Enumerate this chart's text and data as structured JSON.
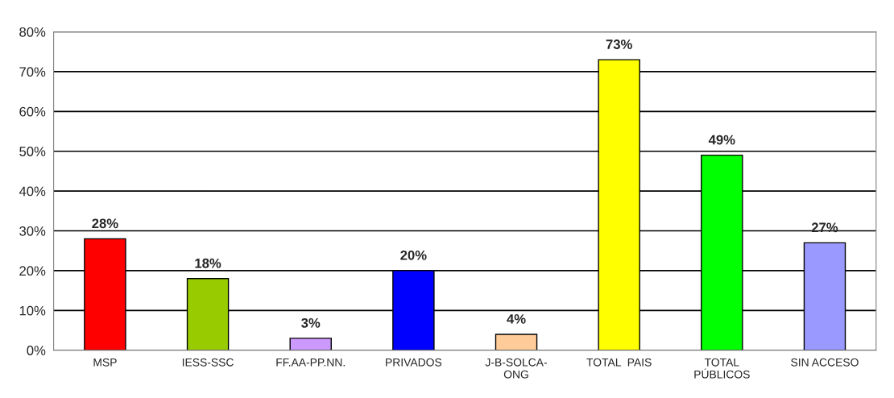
{
  "chart_data": {
    "type": "bar",
    "categories": [
      "MSP",
      "IESS-SSC",
      "FF.AA-PP.NN.",
      "PRIVADOS",
      "J-B-SOLCA-\nONG",
      "TOTAL  PAIS",
      "TOTAL\nPÚBLICOS",
      "SIN ACCESO"
    ],
    "values": [
      28,
      18,
      3,
      20,
      4,
      73,
      49,
      27
    ],
    "colors": [
      "#ff0000",
      "#99cc00",
      "#cc99ff",
      "#0000ff",
      "#ffcc99",
      "#ffff00",
      "#00ff00",
      "#9999ff"
    ],
    "value_labels": [
      "28%",
      "18%",
      "3%",
      "20%",
      "4%",
      "73%",
      "49%",
      "27%"
    ],
    "ylim": [
      0,
      80
    ],
    "yticks": [
      {
        "value": 0,
        "label": "0%"
      },
      {
        "value": 10,
        "label": "10%"
      },
      {
        "value": 20,
        "label": "20%"
      },
      {
        "value": 30,
        "label": "30%"
      },
      {
        "value": 40,
        "label": "40%"
      },
      {
        "value": 50,
        "label": "50%"
      },
      {
        "value": 60,
        "label": "60%"
      },
      {
        "value": 70,
        "label": "70%"
      },
      {
        "value": 80,
        "label": "80%"
      }
    ],
    "grid": "y",
    "legend": false
  }
}
